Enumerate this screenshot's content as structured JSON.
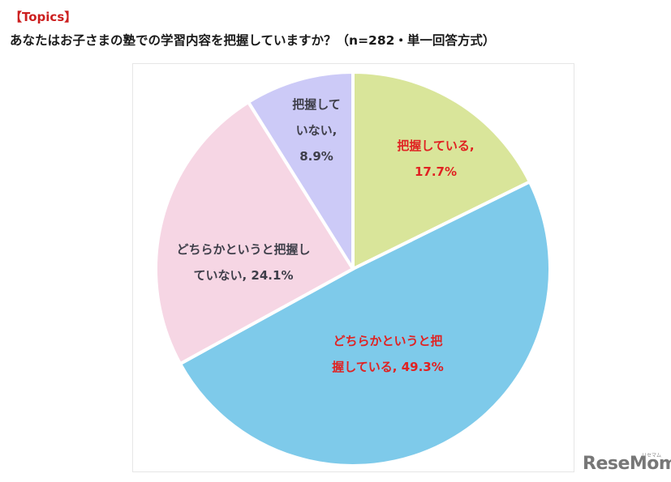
{
  "header": {
    "topics_label": "【Topics】",
    "title": "あなたはお子さまの塾での学習内容を把握していますか？（n=282・単一回答方式）"
  },
  "chart_data": {
    "type": "pie",
    "title": "あなたはお子さまの塾での学習内容を把握していますか？（n=282・単一回答方式）",
    "n": 282,
    "start_angle": "12 o'clock",
    "direction": "clockwise",
    "categories": [
      "把握している",
      "どちらかというと把握している",
      "どちらかというと把握していない",
      "把握していない"
    ],
    "values": [
      17.7,
      49.3,
      24.1,
      8.9
    ],
    "unit": "%",
    "colors": [
      "#d9e59a",
      "#7ecaea",
      "#f6d6e4",
      "#cccaf7"
    ],
    "legend": "none (data labels inside slices)"
  },
  "labels": {
    "green_line1": "把握している,",
    "green_line2": "17.7%",
    "blue_line1": "どちらかというと把",
    "blue_line2": "握している, 49.3%",
    "pink_line1": "どちらかというと把握し",
    "pink_line2": "ていない, 24.1%",
    "lavender_line1": "把握して",
    "lavender_line2": "いない,",
    "lavender_line3": "8.9%"
  },
  "colors": {
    "highlight_text": "#e02222",
    "normal_text": "#3f3f4a",
    "topics": "#cc1f1f"
  },
  "branding": {
    "logo": "ReseMom",
    "logo_kana": "リセマム"
  }
}
